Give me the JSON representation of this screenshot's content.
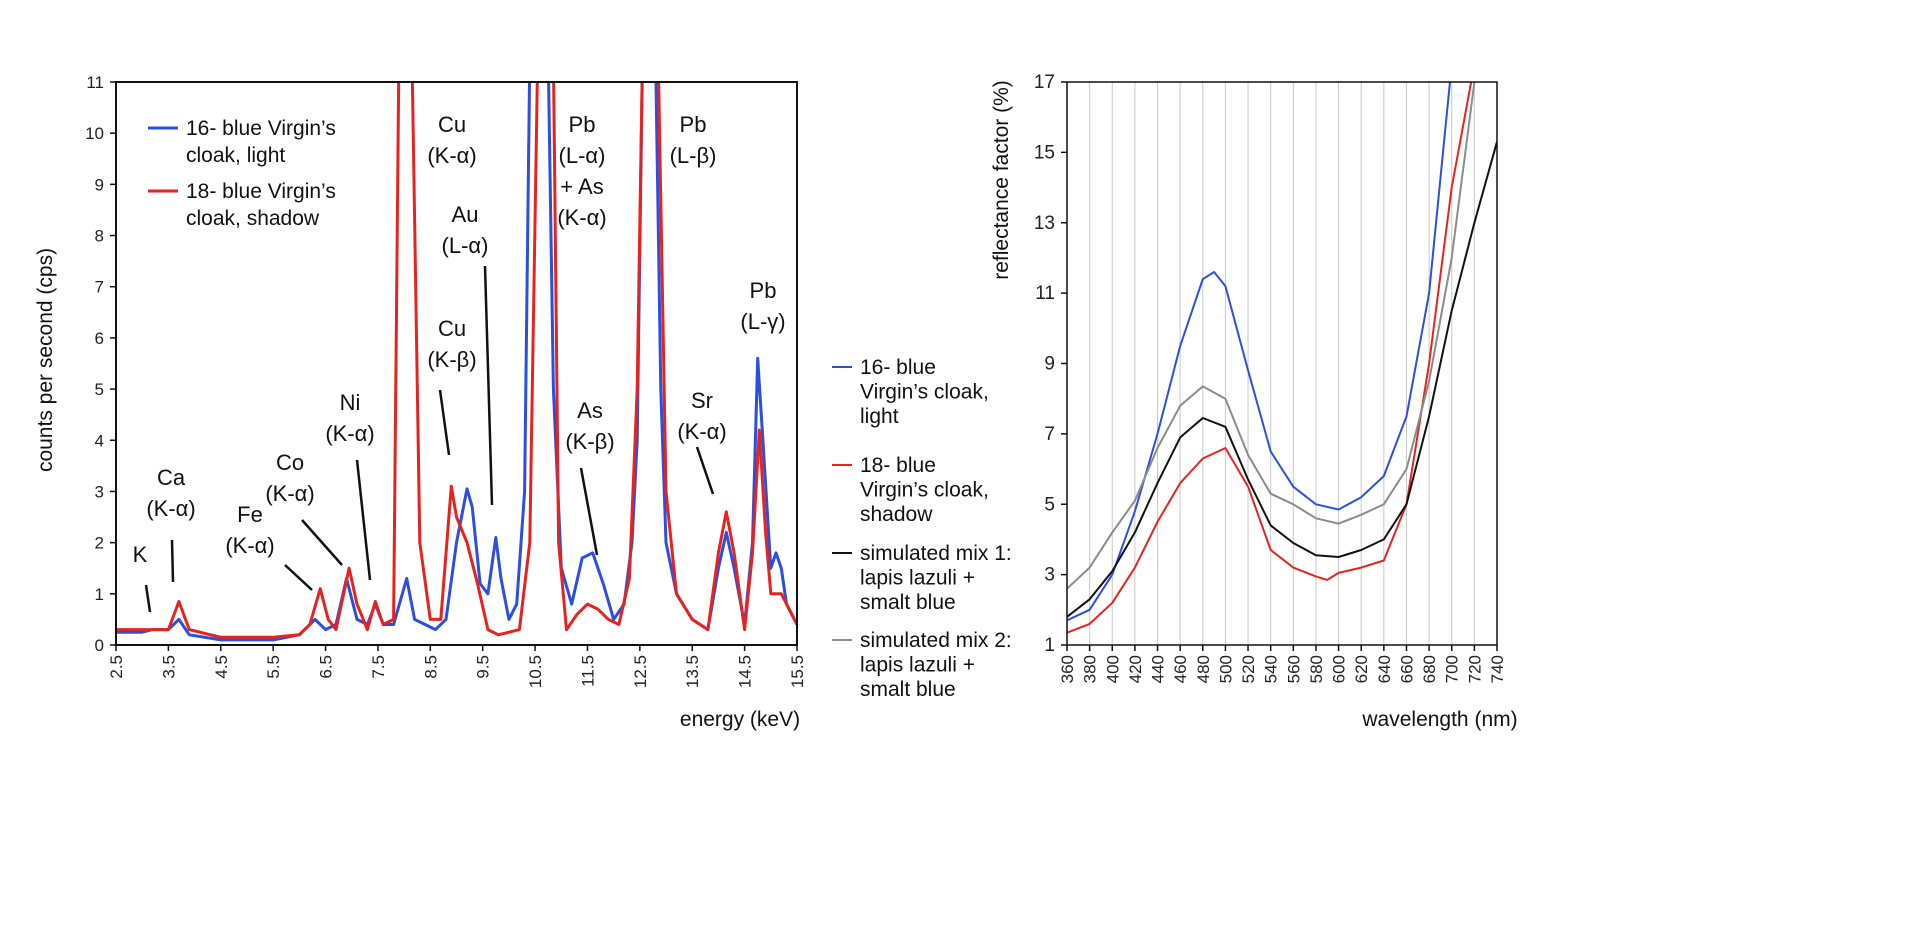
{
  "chart_data": [
    {
      "type": "line",
      "xlabel": "energy (keV)",
      "ylabel": "counts per second (cps)",
      "xlim": [
        2.5,
        15.5
      ],
      "ylim": [
        0,
        11
      ],
      "xticks": [
        "2.5",
        "3.5",
        "4.5",
        "5.5",
        "6.5",
        "7.5",
        "8.5",
        "9.5",
        "10.5",
        "11.5",
        "12.5",
        "13.5",
        "14.5",
        "15.5"
      ],
      "yticks": [
        "0",
        "1",
        "2",
        "3",
        "4",
        "5",
        "6",
        "7",
        "8",
        "9",
        "10",
        "11"
      ],
      "grid": false,
      "legend_placement": "top-left",
      "legend": [
        {
          "lines": [
            "16- blue Virgin’s",
            "cloak, light"
          ],
          "color": "#2b4fe0"
        },
        {
          "lines": [
            "18- blue Virgin’s",
            "cloak, shadow"
          ],
          "color": "#e8231f"
        }
      ],
      "series": [
        {
          "name": "16- blue Virgin’s cloak, light",
          "color": "#2b4fe0",
          "x": [
            2.5,
            3.0,
            3.2,
            3.5,
            3.7,
            3.9,
            4.5,
            5.5,
            6.0,
            6.3,
            6.5,
            6.7,
            6.9,
            7.1,
            7.3,
            7.45,
            7.6,
            7.8,
            8.05,
            8.2,
            8.4,
            8.6,
            8.8,
            9.0,
            9.2,
            9.3,
            9.45,
            9.6,
            9.75,
            9.85,
            10.0,
            10.15,
            10.3,
            10.4,
            10.75,
            10.85,
            11.0,
            11.2,
            11.4,
            11.6,
            11.8,
            12.0,
            12.2,
            12.35,
            12.45,
            12.55,
            12.8,
            12.9,
            13.0,
            13.2,
            13.5,
            13.8,
            14.0,
            14.15,
            14.3,
            14.5,
            14.65,
            14.75,
            14.85,
            15.0,
            15.1,
            15.2,
            15.3,
            15.5
          ],
          "y": [
            0.25,
            0.25,
            0.3,
            0.3,
            0.5,
            0.2,
            0.1,
            0.1,
            0.2,
            0.5,
            0.3,
            0.4,
            1.3,
            0.5,
            0.4,
            0.8,
            0.4,
            0.4,
            1.3,
            0.5,
            0.4,
            0.3,
            0.5,
            2.0,
            3.05,
            2.7,
            1.2,
            1.0,
            2.1,
            1.3,
            0.5,
            0.8,
            3.0,
            11.5,
            11.5,
            5.0,
            1.5,
            0.8,
            1.7,
            1.8,
            1.2,
            0.5,
            0.8,
            2.0,
            4.0,
            11.5,
            11.5,
            5.0,
            2.0,
            1.0,
            0.5,
            0.3,
            1.5,
            2.2,
            1.5,
            0.4,
            2.0,
            5.6,
            4.0,
            1.5,
            1.8,
            1.5,
            0.8,
            0.4
          ]
        },
        {
          "name": "18- blue Virgin’s cloak, shadow",
          "color": "#e8231f",
          "x": [
            2.5,
            3.0,
            3.2,
            3.5,
            3.7,
            3.9,
            4.5,
            5.5,
            6.0,
            6.2,
            6.4,
            6.55,
            6.7,
            6.95,
            7.1,
            7.3,
            7.45,
            7.6,
            7.8,
            7.9,
            8.15,
            8.3,
            8.5,
            8.7,
            8.9,
            9.0,
            9.2,
            9.4,
            9.6,
            9.8,
            10.2,
            10.4,
            10.55,
            10.85,
            10.95,
            11.1,
            11.3,
            11.5,
            11.7,
            11.9,
            12.1,
            12.3,
            12.45,
            12.55,
            12.85,
            13.0,
            13.2,
            13.5,
            13.8,
            14.0,
            14.15,
            14.3,
            14.5,
            14.65,
            14.78,
            14.9,
            15.0,
            15.2,
            15.4,
            15.5
          ],
          "y": [
            0.3,
            0.3,
            0.3,
            0.3,
            0.85,
            0.3,
            0.15,
            0.15,
            0.2,
            0.4,
            1.1,
            0.5,
            0.3,
            1.5,
            0.8,
            0.3,
            0.85,
            0.4,
            0.5,
            11.5,
            11.5,
            2.0,
            0.5,
            0.5,
            3.1,
            2.5,
            2.0,
            1.2,
            0.3,
            0.2,
            0.3,
            2.0,
            11.5,
            11.5,
            2.0,
            0.3,
            0.6,
            0.8,
            0.7,
            0.5,
            0.4,
            1.3,
            5.0,
            11.5,
            11.5,
            3.0,
            1.0,
            0.5,
            0.3,
            1.8,
            2.6,
            1.8,
            0.3,
            1.8,
            4.2,
            2.2,
            1.0,
            1.0,
            0.6,
            0.4
          ]
        }
      ],
      "annotations": [
        {
          "lines": [
            "K"
          ]
        },
        {
          "lines": [
            "Ca",
            "(K-α)"
          ]
        },
        {
          "lines": [
            "Fe",
            "(K-α)"
          ]
        },
        {
          "lines": [
            "Co",
            "(K-α)"
          ]
        },
        {
          "lines": [
            "Ni",
            "(K-α)"
          ]
        },
        {
          "lines": [
            "Cu",
            "(K-α)"
          ]
        },
        {
          "lines": [
            "Cu",
            "(K-β)"
          ]
        },
        {
          "lines": [
            "Au",
            "(L-α)"
          ]
        },
        {
          "lines": [
            "Pb",
            "(L-α)",
            "+ As",
            "(K-α)"
          ]
        },
        {
          "lines": [
            "As",
            "(K-β)"
          ]
        },
        {
          "lines": [
            "Pb",
            "(L-β)"
          ]
        },
        {
          "lines": [
            "Sr",
            "(K-α)"
          ]
        },
        {
          "lines": [
            "Pb",
            "(L-γ)"
          ]
        }
      ]
    },
    {
      "type": "line",
      "xlabel": "wavelength (nm)",
      "ylabel": "reflectance factor (%)",
      "xlim": [
        360,
        740
      ],
      "ylim": [
        1,
        17
      ],
      "xticks": [
        "360",
        "380",
        "400",
        "420",
        "440",
        "460",
        "480",
        "500",
        "520",
        "540",
        "560",
        "580",
        "600",
        "620",
        "640",
        "660",
        "680",
        "700",
        "720",
        "740"
      ],
      "yticks": [
        "1",
        "3",
        "5",
        "7",
        "9",
        "11",
        "13",
        "15",
        "17"
      ],
      "grid": "vertical",
      "legend_placement": "left-outside",
      "legend": [
        {
          "lines": [
            "16- blue",
            "Virgin’s cloak,",
            "light"
          ],
          "color": "#2b4fe0"
        },
        {
          "lines": [
            "18- blue",
            "Virgin’s cloak,",
            "shadow"
          ],
          "color": "#e8231f"
        },
        {
          "lines": [
            "simulated mix 1:",
            "lapis lazuli +",
            "smalt blue"
          ],
          "color": "#111111"
        },
        {
          "lines": [
            "simulated mix 2:",
            "lapis lazuli +",
            "smalt blue"
          ],
          "color": "#8c8c8c"
        }
      ],
      "series": [
        {
          "name": "16- blue Virgin’s cloak, light",
          "color": "#2b4fe0",
          "x": [
            360,
            380,
            400,
            420,
            440,
            460,
            480,
            490,
            500,
            520,
            540,
            560,
            580,
            600,
            620,
            640,
            660,
            680,
            700
          ],
          "y": [
            1.7,
            2.0,
            3.0,
            4.8,
            7.0,
            9.5,
            11.4,
            11.6,
            11.2,
            8.8,
            6.5,
            5.5,
            5.0,
            4.85,
            5.2,
            5.8,
            7.5,
            11.0,
            17.5
          ]
        },
        {
          "name": "18- blue Virgin’s cloak, shadow",
          "color": "#e8231f",
          "x": [
            360,
            380,
            400,
            420,
            440,
            460,
            480,
            500,
            520,
            540,
            560,
            580,
            590,
            600,
            620,
            640,
            660,
            680,
            700,
            720
          ],
          "y": [
            1.35,
            1.6,
            2.2,
            3.2,
            4.5,
            5.6,
            6.3,
            6.6,
            5.5,
            3.7,
            3.2,
            2.95,
            2.85,
            3.05,
            3.2,
            3.4,
            5.0,
            9.0,
            14.0,
            17.5
          ]
        },
        {
          "name": "simulated mix 1: lapis lazuli + smalt blue",
          "color": "#111111",
          "x": [
            360,
            380,
            400,
            420,
            440,
            460,
            480,
            500,
            520,
            540,
            560,
            580,
            600,
            620,
            640,
            660,
            680,
            700,
            720,
            740
          ],
          "y": [
            1.8,
            2.3,
            3.1,
            4.2,
            5.6,
            6.9,
            7.45,
            7.2,
            5.7,
            4.4,
            3.9,
            3.55,
            3.5,
            3.7,
            4.0,
            5.0,
            7.5,
            10.5,
            13.0,
            15.3
          ]
        },
        {
          "name": "simulated mix 2: lapis lazuli + smalt blue",
          "color": "#8c8c8c",
          "x": [
            360,
            380,
            400,
            420,
            440,
            460,
            480,
            500,
            520,
            540,
            560,
            580,
            600,
            620,
            640,
            660,
            680,
            700,
            720
          ],
          "y": [
            2.6,
            3.2,
            4.2,
            5.1,
            6.6,
            7.8,
            8.35,
            8.0,
            6.4,
            5.3,
            5.0,
            4.6,
            4.45,
            4.7,
            5.0,
            6.0,
            8.5,
            12.0,
            17.0
          ]
        }
      ]
    }
  ]
}
